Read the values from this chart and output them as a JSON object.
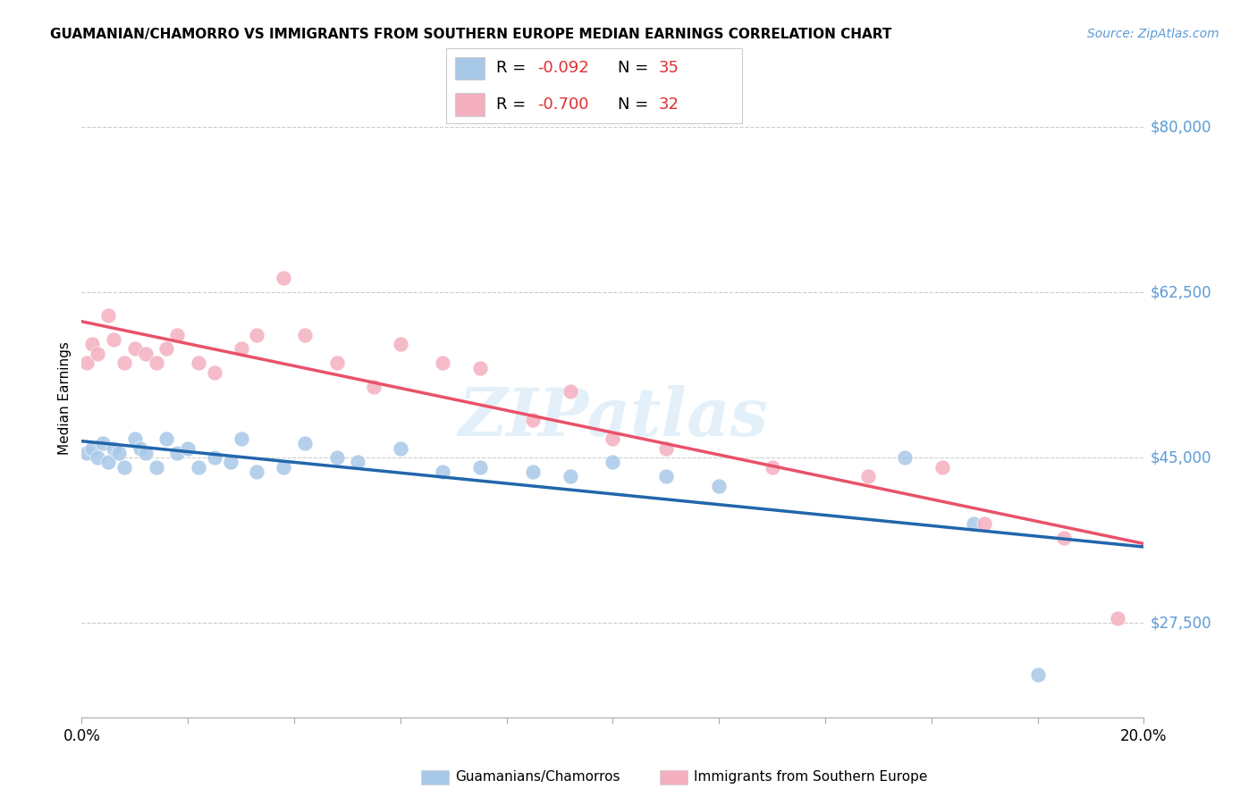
{
  "title": "GUAMANIAN/CHAMORRO VS IMMIGRANTS FROM SOUTHERN EUROPE MEDIAN EARNINGS CORRELATION CHART",
  "source": "Source: ZipAtlas.com",
  "ylabel": "Median Earnings",
  "xlim": [
    0.0,
    0.2
  ],
  "ylim": [
    17500,
    85000
  ],
  "yticks": [
    27500,
    45000,
    62500,
    80000
  ],
  "ytick_labels": [
    "$27,500",
    "$45,000",
    "$62,500",
    "$80,000"
  ],
  "xticks": [
    0.0,
    0.02,
    0.04,
    0.06,
    0.08,
    0.1,
    0.12,
    0.14,
    0.16,
    0.18,
    0.2
  ],
  "xtick_labels": [
    "0.0%",
    "",
    "",
    "",
    "",
    "",
    "",
    "",
    "",
    "",
    "20.0%"
  ],
  "blue_scatter_color": "#a8c8e8",
  "pink_scatter_color": "#f4b0c0",
  "blue_line_color": "#2166ac",
  "pink_line_color": "#e8526a",
  "axis_tick_color": "#5b9bd5",
  "R_blue": -0.092,
  "N_blue": 35,
  "R_pink": -0.7,
  "N_pink": 32,
  "legend_label_blue": "Guamanians/Chamorros",
  "legend_label_pink": "Immigrants from Southern Europe",
  "watermark": "ZIPatlas",
  "blue_x": [
    0.001,
    0.002,
    0.003,
    0.004,
    0.005,
    0.006,
    0.007,
    0.008,
    0.01,
    0.011,
    0.012,
    0.014,
    0.016,
    0.018,
    0.02,
    0.022,
    0.025,
    0.028,
    0.03,
    0.033,
    0.038,
    0.042,
    0.048,
    0.052,
    0.06,
    0.068,
    0.075,
    0.085,
    0.092,
    0.1,
    0.11,
    0.12,
    0.155,
    0.168,
    0.18
  ],
  "blue_y": [
    45500,
    46000,
    45000,
    46500,
    44500,
    46000,
    45500,
    44000,
    47000,
    46000,
    45500,
    44000,
    47000,
    45500,
    46000,
    44000,
    45000,
    44500,
    47000,
    43500,
    44000,
    46500,
    45000,
    44500,
    46000,
    43500,
    44000,
    43500,
    43000,
    44500,
    43000,
    42000,
    45000,
    38000,
    22000
  ],
  "pink_x": [
    0.001,
    0.002,
    0.003,
    0.005,
    0.006,
    0.008,
    0.01,
    0.012,
    0.014,
    0.016,
    0.018,
    0.022,
    0.025,
    0.03,
    0.033,
    0.038,
    0.042,
    0.048,
    0.055,
    0.06,
    0.068,
    0.075,
    0.085,
    0.092,
    0.1,
    0.11,
    0.13,
    0.148,
    0.162,
    0.17,
    0.185,
    0.195
  ],
  "pink_y": [
    55000,
    57000,
    56000,
    60000,
    57500,
    55000,
    56500,
    56000,
    55000,
    56500,
    58000,
    55000,
    54000,
    56500,
    58000,
    64000,
    58000,
    55000,
    52500,
    57000,
    55000,
    54500,
    49000,
    52000,
    47000,
    46000,
    44000,
    43000,
    44000,
    38000,
    36500,
    28000
  ]
}
